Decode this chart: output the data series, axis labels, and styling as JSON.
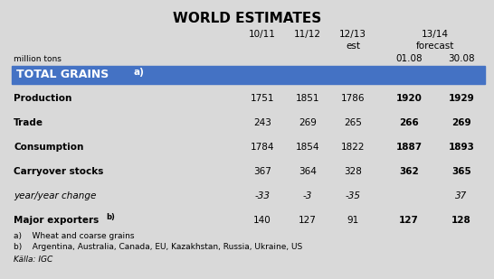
{
  "title": "WORLD ESTIMATES",
  "background_color": "#d9d9d9",
  "header_bg": "#4472c4",
  "rows": [
    {
      "label": "Production",
      "bold": true,
      "italic": false,
      "values": [
        "1751",
        "1851",
        "1786",
        "1920",
        "1929"
      ],
      "forecast_bold": true
    },
    {
      "label": "Trade",
      "bold": true,
      "italic": false,
      "values": [
        "243",
        "269",
        "265",
        "266",
        "269"
      ],
      "forecast_bold": true
    },
    {
      "label": "Consumption",
      "bold": true,
      "italic": false,
      "values": [
        "1784",
        "1854",
        "1822",
        "1887",
        "1893"
      ],
      "forecast_bold": true
    },
    {
      "label": "Carryover stocks",
      "bold": true,
      "italic": false,
      "values": [
        "367",
        "364",
        "328",
        "362",
        "365"
      ],
      "forecast_bold": true
    },
    {
      "label": "year/year change",
      "bold": false,
      "italic": true,
      "values": [
        "-33",
        "-3",
        "-35",
        "",
        "37"
      ],
      "forecast_bold": false
    },
    {
      "label": "Major exporters b)",
      "bold": true,
      "italic": false,
      "values": [
        "140",
        "127",
        "91",
        "127",
        "128"
      ],
      "forecast_bold": true
    }
  ],
  "footnote_a": "a)    Wheat and coarse grains",
  "footnote_b": "b)    Argentina, Australia, Canada, EU, Kazakhstan, Russia, Ukraine, US",
  "source": "Källa: IGC",
  "col_header_line1": [
    "10/11",
    "11/12",
    "12/13",
    "13/14"
  ],
  "col_header_line2": [
    "",
    "",
    "est",
    "forecast"
  ],
  "sub_dates": [
    "01.08",
    "30.08"
  ],
  "title_fontsize": 11,
  "body_fontsize": 7.5,
  "small_fontsize": 6.5
}
